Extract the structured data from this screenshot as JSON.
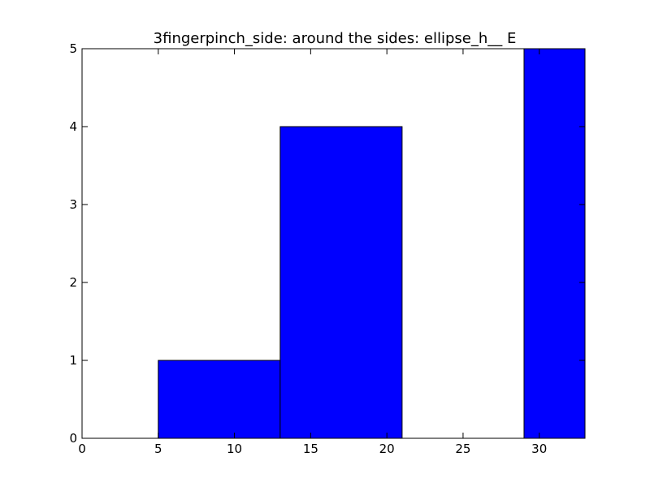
{
  "chart_data": {
    "type": "bar",
    "title": "3fingerpinch_side: around the sides: ellipse_h__ E",
    "xlabel": "",
    "ylabel": "",
    "xlim": [
      0,
      33
    ],
    "ylim": [
      0,
      5
    ],
    "x_ticks": [
      0,
      5,
      10,
      15,
      20,
      25,
      30
    ],
    "y_ticks": [
      0,
      1,
      2,
      3,
      4,
      5
    ],
    "bins": [
      {
        "x_start": 0,
        "x_end": 5,
        "value": 0
      },
      {
        "x_start": 5,
        "x_end": 13,
        "value": 1
      },
      {
        "x_start": 13,
        "x_end": 21,
        "value": 4
      },
      {
        "x_start": 21,
        "x_end": 29,
        "value": 0
      },
      {
        "x_start": 29,
        "x_end": 33,
        "value": 5
      }
    ],
    "bar_color": "#0000ff",
    "edge_color": "#000000",
    "grid": false,
    "legend": "none"
  }
}
